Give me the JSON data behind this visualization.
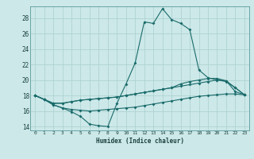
{
  "xlabel": "Humidex (Indice chaleur)",
  "ylabel": "",
  "bg_color": "#cce8e8",
  "grid_color": "#aacfcf",
  "line_color": "#1a6b6b",
  "xlim": [
    -0.5,
    23.5
  ],
  "ylim": [
    13.5,
    29.5
  ],
  "xticks": [
    0,
    1,
    2,
    3,
    4,
    5,
    6,
    7,
    8,
    9,
    10,
    11,
    12,
    13,
    14,
    15,
    16,
    17,
    18,
    19,
    20,
    21,
    22,
    23
  ],
  "yticks": [
    14,
    16,
    18,
    20,
    22,
    24,
    26,
    28
  ],
  "line1": [
    18.0,
    17.5,
    16.8,
    16.4,
    15.9,
    15.3,
    14.3,
    14.1,
    14.0,
    17.0,
    19.5,
    22.2,
    27.5,
    27.3,
    29.2,
    27.8,
    27.3,
    26.5,
    21.3,
    20.3,
    20.0,
    19.8,
    19.0,
    18.1
  ],
  "line2": [
    18.0,
    17.5,
    17.0,
    17.0,
    17.2,
    17.4,
    17.5,
    17.6,
    17.7,
    17.8,
    18.0,
    18.2,
    18.4,
    18.6,
    18.8,
    19.0,
    19.2,
    19.4,
    19.6,
    19.8,
    20.0,
    19.9,
    18.5,
    18.1
  ],
  "line3": [
    18.0,
    17.5,
    17.0,
    17.0,
    17.2,
    17.4,
    17.5,
    17.6,
    17.7,
    17.8,
    18.0,
    18.2,
    18.4,
    18.6,
    18.8,
    19.0,
    19.5,
    19.8,
    20.0,
    20.2,
    20.2,
    19.9,
    19.0,
    18.1
  ],
  "line4": [
    18.0,
    17.5,
    16.8,
    16.4,
    16.2,
    16.1,
    16.0,
    16.1,
    16.2,
    16.3,
    16.4,
    16.5,
    16.7,
    16.9,
    17.1,
    17.3,
    17.5,
    17.7,
    17.9,
    18.0,
    18.1,
    18.2,
    18.2,
    18.1
  ]
}
